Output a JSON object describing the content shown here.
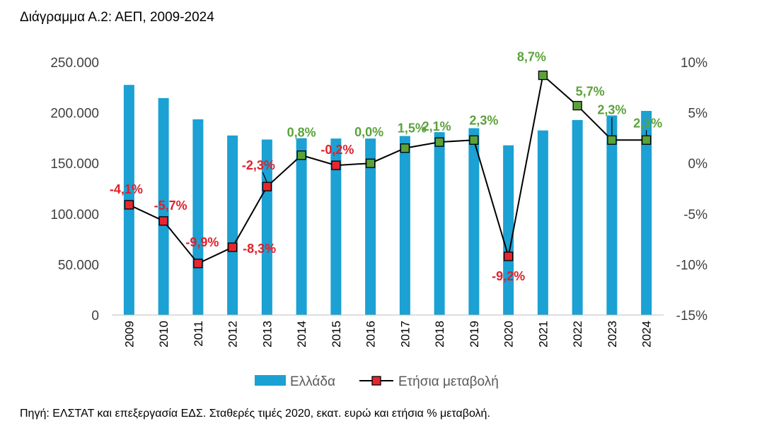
{
  "title": "Διάγραμμα Α.2: ΑΕΠ, 2009-2024",
  "source": "Πηγή: ΕΛΣΤΑΤ και επεξεργασία ΕΔΣ. Σταθερές τιμές 2020, εκατ. ευρώ και ετήσια % μεταβολή.",
  "colors": {
    "bar": "#1ba1d3",
    "line": "#000000",
    "negative_marker": "#e8262d",
    "positive_marker": "#5ba23a",
    "negative_label": "#e0202a",
    "positive_label": "#5ba23a"
  },
  "chart_data": {
    "type": "bar+line",
    "categories": [
      "2009",
      "2010",
      "2011",
      "2012",
      "2013",
      "2014",
      "2015",
      "2016",
      "2017",
      "2018",
      "2019",
      "2020",
      "2021",
      "2022",
      "2023",
      "2024"
    ],
    "series": [
      {
        "name": "Ελλάδα",
        "type": "bar",
        "axis": "left",
        "values": [
          227500,
          214500,
          193500,
          177500,
          173500,
          174800,
          174500,
          174500,
          177000,
          180800,
          184700,
          167800,
          182500,
          192800,
          197300,
          201800
        ]
      },
      {
        "name": "Ετήσια μεταβολή",
        "type": "line",
        "axis": "right",
        "values": [
          -4.1,
          -5.7,
          -9.9,
          -8.3,
          -2.3,
          0.8,
          -0.2,
          0.0,
          1.5,
          2.1,
          2.3,
          -9.2,
          8.7,
          5.7,
          2.3,
          2.3
        ],
        "labels": [
          "-4,1%",
          "-5,7%",
          "-9,9%",
          "-8,3%",
          "-2,3%",
          "0,8%",
          "-0,2%",
          "0,0%",
          "1,5%",
          "2,1%",
          "2,3%",
          "-9,2%",
          "8,7%",
          "5,7%",
          "2,3%",
          "2,3%"
        ]
      }
    ],
    "left_axis": {
      "ylim": [
        0,
        250000
      ],
      "ticks": [
        0,
        50000,
        100000,
        150000,
        200000,
        250000
      ],
      "tick_labels": [
        "0",
        "50.000",
        "100.000",
        "150.000",
        "200.000",
        "250.000"
      ]
    },
    "right_axis": {
      "ylim": [
        -15,
        10
      ],
      "ticks": [
        -15,
        -10,
        -5,
        0,
        5,
        10
      ],
      "tick_labels": [
        "-15%",
        "-10%",
        "-5%",
        "0%",
        "5%",
        "10%"
      ]
    },
    "grid": false,
    "legend_position": "bottom"
  }
}
